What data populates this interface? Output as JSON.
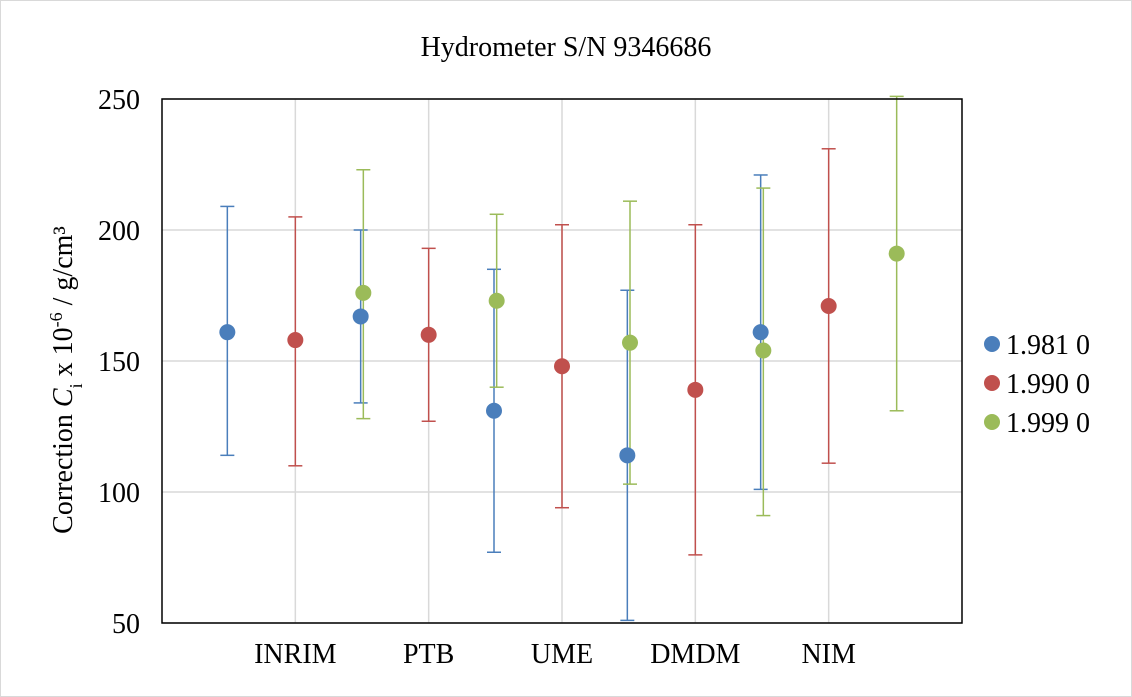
{
  "chart_data": {
    "type": "scatter",
    "title": "Hydrometer S/N 9346686",
    "ylabel": {
      "prefix": "Correction ",
      "symbol": "C",
      "subscript": "i",
      "middle": " x 10",
      "exponent": "-6",
      "suffix": " / g/cm³"
    },
    "xlabel": "",
    "categories": [
      "INRIM",
      "PTB",
      "UME",
      "DMDM",
      "NIM"
    ],
    "ylim": [
      50,
      250
    ],
    "yticks": [
      50,
      100,
      150,
      200,
      250
    ],
    "grid": true,
    "legend_position": "right",
    "series": [
      {
        "name": "1.981 0",
        "color": "#4a7ebb",
        "values": [
          161,
          167,
          131,
          114,
          161
        ],
        "lower": [
          114,
          134,
          77,
          51,
          101
        ],
        "upper": [
          209,
          200,
          185,
          177,
          221
        ]
      },
      {
        "name": "1.990 0",
        "color": "#c0504d",
        "values": [
          158,
          160,
          148,
          139,
          171
        ],
        "lower": [
          110,
          127,
          94,
          76,
          111
        ],
        "upper": [
          205,
          193,
          202,
          202,
          231
        ]
      },
      {
        "name": "1.999 0",
        "color": "#9bbb59",
        "values": [
          176,
          173,
          157,
          154,
          191
        ],
        "lower": [
          128,
          140,
          103,
          91,
          131
        ],
        "upper": [
          223,
          206,
          211,
          216,
          251
        ]
      }
    ]
  }
}
